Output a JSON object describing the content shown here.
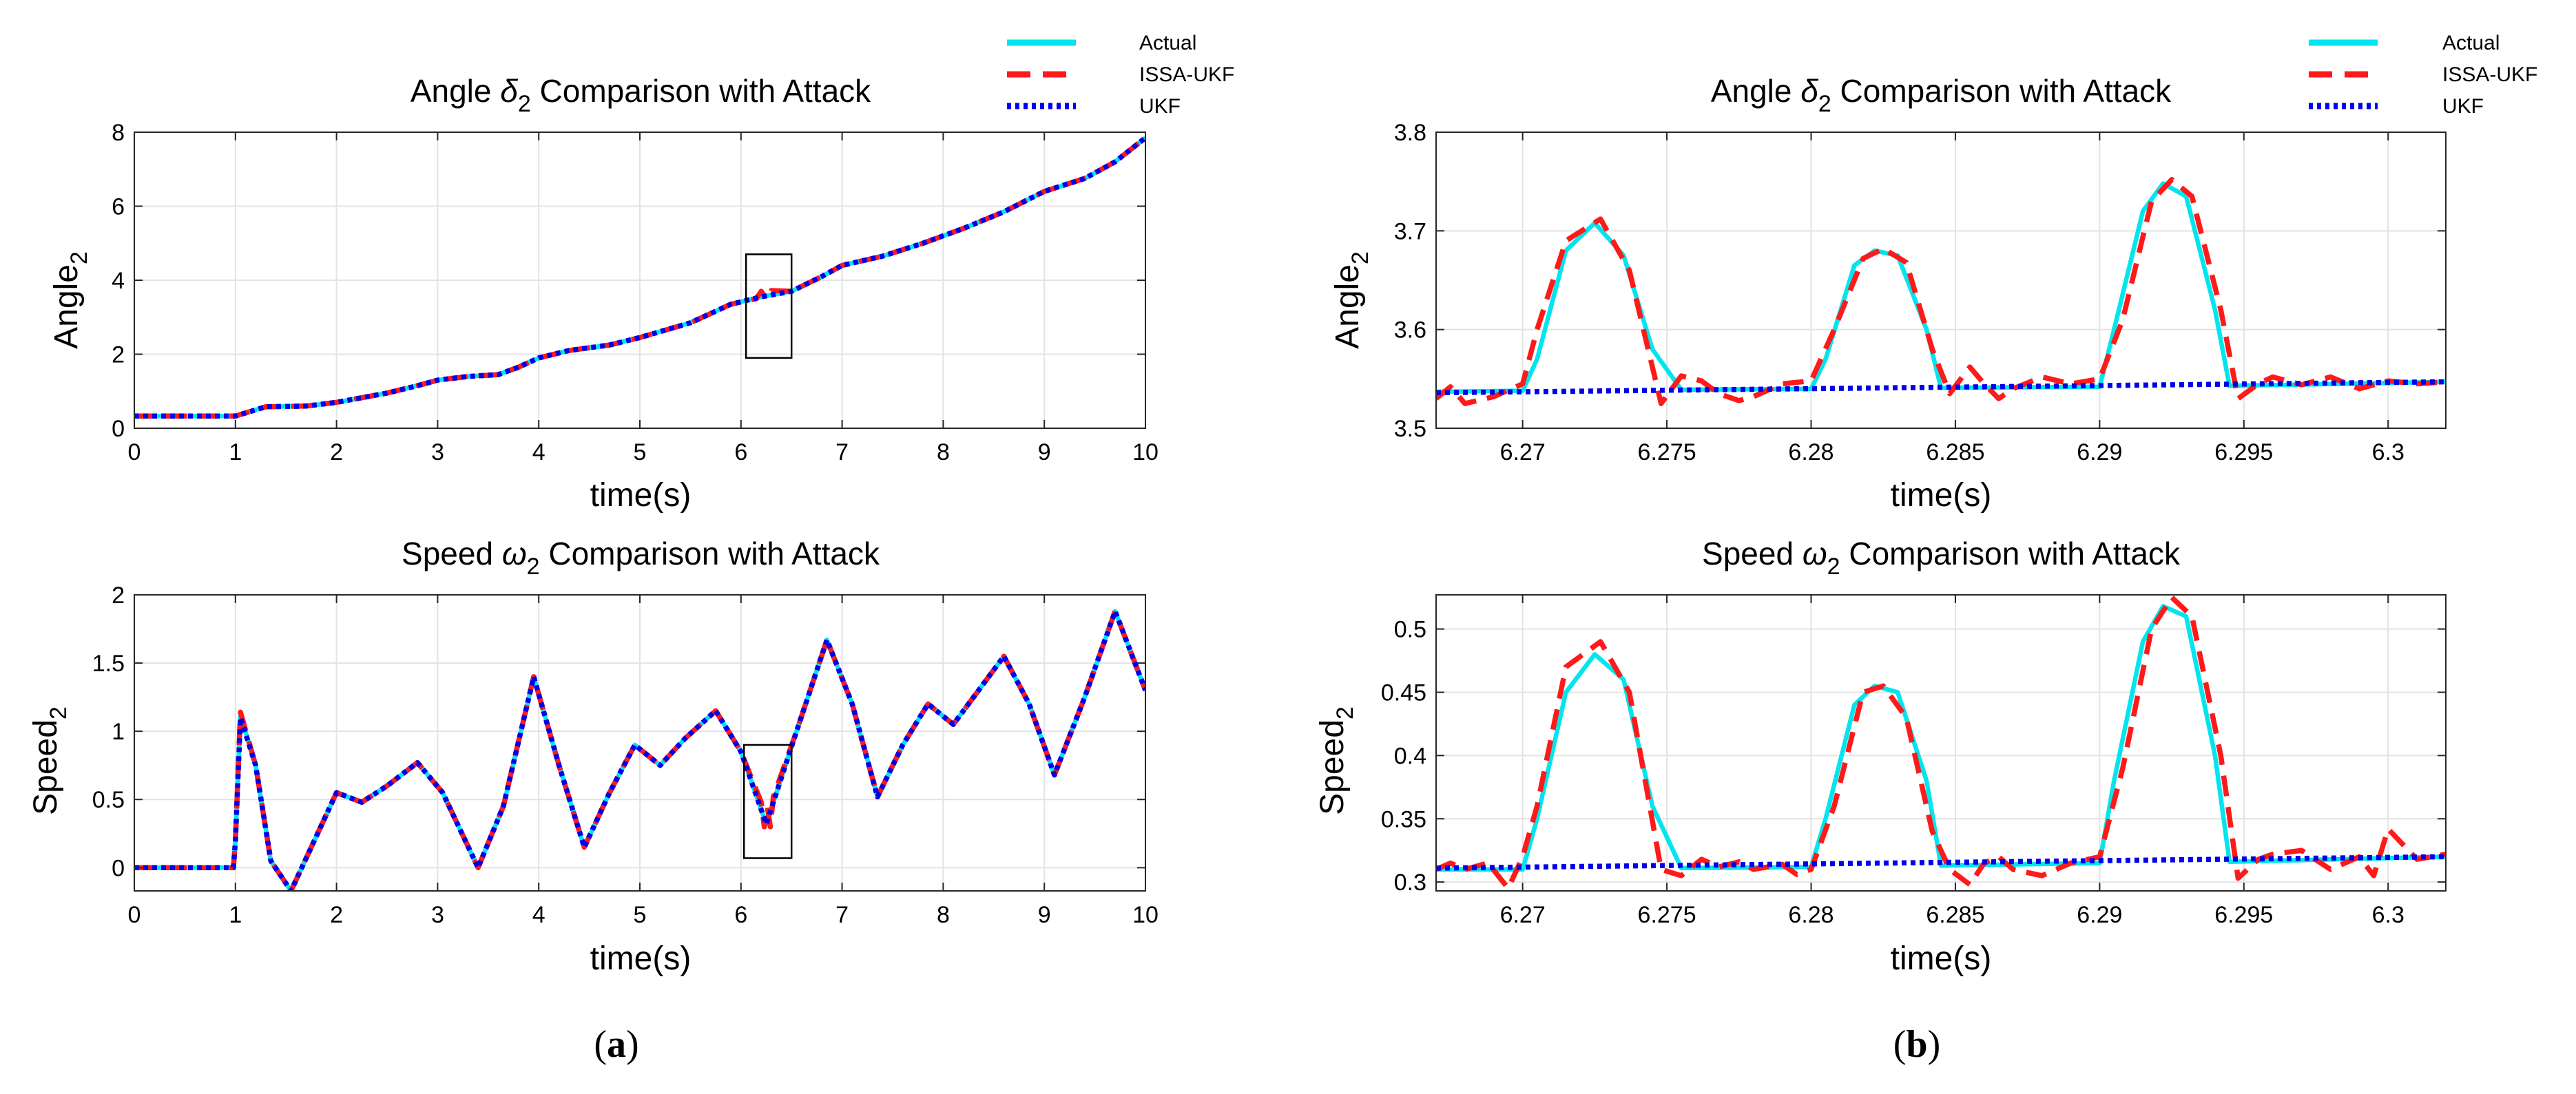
{
  "figure_labels": {
    "a": {
      "open": "(",
      "letter": "a",
      "close": ")"
    },
    "b": {
      "open": "(",
      "letter": "b",
      "close": ")"
    }
  },
  "legend": {
    "entries": [
      {
        "label": "Actual",
        "color": "#00e5ee",
        "style": "solid"
      },
      {
        "label": "ISSA-UKF",
        "color": "#ff1a1a",
        "style": "dashed"
      },
      {
        "label": "UKF",
        "color": "#0000ee",
        "style": "dotted"
      }
    ]
  },
  "chart_data": [
    {
      "id": "a-top",
      "type": "line",
      "title_prefix": "Angle ",
      "title_symbol": "δ",
      "title_subscript": "2",
      "title_suffix": " Comparison with Attack",
      "xlabel": "time(s)",
      "ylabel_main": "Angle",
      "ylabel_sub": "2",
      "xlim": [
        0,
        10
      ],
      "ylim": [
        0,
        8
      ],
      "xticks": [
        0,
        1,
        2,
        3,
        4,
        5,
        6,
        7,
        8,
        9,
        10
      ],
      "xtick_labels": [
        "0",
        "1",
        "2",
        "3",
        "4",
        "5",
        "6",
        "7",
        "8",
        "9",
        "10"
      ],
      "yticks": [
        0,
        2,
        4,
        6,
        8
      ],
      "ytick_labels": [
        "0",
        "2",
        "4",
        "6",
        "8"
      ],
      "grid": true,
      "zoom_box": {
        "x": [
          6.05,
          6.5
        ],
        "y": [
          1.9,
          4.7
        ]
      },
      "series": [
        {
          "name": "Actual",
          "x": [
            0,
            1,
            1.3,
            1.7,
            2,
            2.5,
            2.8,
            3,
            3.3,
            3.6,
            3.8,
            4,
            4.3,
            4.7,
            5,
            5.5,
            5.9,
            6.2,
            6.5,
            6.8,
            7,
            7.4,
            7.8,
            8.2,
            8.6,
            9,
            9.4,
            9.7,
            10
          ],
          "y": [
            0.33,
            0.33,
            0.58,
            0.6,
            0.7,
            0.95,
            1.15,
            1.3,
            1.4,
            1.45,
            1.65,
            1.9,
            2.1,
            2.25,
            2.45,
            2.85,
            3.35,
            3.55,
            3.7,
            4.1,
            4.4,
            4.65,
            5,
            5.4,
            5.85,
            6.4,
            6.75,
            7.2,
            7.85
          ]
        },
        {
          "name": "ISSA-UKF",
          "x": [
            0,
            1,
            1.3,
            1.7,
            2,
            2.5,
            2.8,
            3,
            3.3,
            3.6,
            3.8,
            4,
            4.3,
            4.7,
            5,
            5.5,
            5.9,
            6.15,
            6.2,
            6.25,
            6.3,
            6.5,
            6.8,
            7,
            7.4,
            7.8,
            8.2,
            8.6,
            9,
            9.4,
            9.7,
            10
          ],
          "y": [
            0.33,
            0.33,
            0.58,
            0.6,
            0.7,
            0.95,
            1.15,
            1.3,
            1.4,
            1.45,
            1.65,
            1.9,
            2.1,
            2.25,
            2.45,
            2.85,
            3.35,
            3.5,
            3.7,
            3.5,
            3.72,
            3.7,
            4.1,
            4.4,
            4.65,
            5,
            5.4,
            5.85,
            6.4,
            6.75,
            7.2,
            7.85
          ]
        },
        {
          "name": "UKF",
          "x": [
            0,
            1,
            1.3,
            1.7,
            2,
            2.5,
            2.8,
            3,
            3.3,
            3.6,
            3.8,
            4,
            4.3,
            4.7,
            5,
            5.5,
            5.9,
            6.2,
            6.5,
            6.8,
            7,
            7.4,
            7.8,
            8.2,
            8.6,
            9,
            9.4,
            9.7,
            10
          ],
          "y": [
            0.33,
            0.33,
            0.58,
            0.6,
            0.7,
            0.95,
            1.15,
            1.3,
            1.4,
            1.45,
            1.65,
            1.9,
            2.1,
            2.25,
            2.45,
            2.85,
            3.35,
            3.55,
            3.7,
            4.1,
            4.4,
            4.65,
            5,
            5.4,
            5.85,
            6.4,
            6.75,
            7.2,
            7.85
          ]
        }
      ]
    },
    {
      "id": "a-bottom",
      "type": "line",
      "title_prefix": "Speed ",
      "title_symbol": "ω",
      "title_subscript": "2",
      "title_suffix": " Comparison with Attack",
      "xlabel": "time(s)",
      "ylabel_main": "Speed",
      "ylabel_sub": "2",
      "xlim": [
        0,
        10
      ],
      "ylim": [
        -0.17,
        2
      ],
      "xticks": [
        0,
        1,
        2,
        3,
        4,
        5,
        6,
        7,
        8,
        9,
        10
      ],
      "xtick_labels": [
        "0",
        "1",
        "2",
        "3",
        "4",
        "5",
        "6",
        "7",
        "8",
        "9",
        "10"
      ],
      "yticks": [
        0,
        0.5,
        1,
        1.5,
        2
      ],
      "ytick_labels": [
        "0",
        "0.5",
        "1",
        "1.5",
        "2"
      ],
      "grid": true,
      "zoom_box": {
        "x": [
          6.03,
          6.5
        ],
        "y": [
          0.07,
          0.9
        ]
      },
      "series": [
        {
          "name": "Actual",
          "x": [
            0,
            0.98,
            1.0,
            1.05,
            1.2,
            1.35,
            1.55,
            1.75,
            2.0,
            2.25,
            2.5,
            2.8,
            3.05,
            3.4,
            3.65,
            3.95,
            4.2,
            4.45,
            4.7,
            4.95,
            5.2,
            5.45,
            5.75,
            6.0,
            6.25,
            6.55,
            6.85,
            7.1,
            7.35,
            7.6,
            7.85,
            8.1,
            8.35,
            8.6,
            8.85,
            9.1,
            9.4,
            9.7,
            10.0
          ],
          "y": [
            0,
            0,
            0.2,
            1.12,
            0.75,
            0.05,
            -0.17,
            0.15,
            0.55,
            0.48,
            0.6,
            0.77,
            0.55,
            0.0,
            0.45,
            1.4,
            0.75,
            0.15,
            0.55,
            0.9,
            0.75,
            0.95,
            1.15,
            0.85,
            0.32,
            1.0,
            1.67,
            1.2,
            0.52,
            0.9,
            1.2,
            1.05,
            1.3,
            1.55,
            1.2,
            0.68,
            1.25,
            1.88,
            1.3
          ]
        },
        {
          "name": "ISSA-UKF",
          "x": [
            0,
            0.98,
            1.0,
            1.05,
            1.2,
            1.35,
            1.55,
            1.75,
            2.0,
            2.25,
            2.5,
            2.8,
            3.05,
            3.4,
            3.65,
            3.95,
            4.2,
            4.45,
            4.7,
            4.95,
            5.2,
            5.45,
            5.75,
            6.0,
            6.2,
            6.23,
            6.26,
            6.29,
            6.32,
            6.55,
            6.85,
            7.1,
            7.35,
            7.6,
            7.85,
            8.1,
            8.35,
            8.6,
            8.85,
            9.1,
            9.4,
            9.7,
            10.0
          ],
          "y": [
            0,
            0,
            0.2,
            1.14,
            0.75,
            0.05,
            -0.17,
            0.15,
            0.55,
            0.48,
            0.6,
            0.77,
            0.55,
            0.0,
            0.45,
            1.4,
            0.75,
            0.15,
            0.55,
            0.9,
            0.75,
            0.95,
            1.15,
            0.85,
            0.48,
            0.3,
            0.45,
            0.3,
            0.52,
            1.0,
            1.67,
            1.2,
            0.52,
            0.9,
            1.2,
            1.05,
            1.3,
            1.55,
            1.2,
            0.68,
            1.25,
            1.88,
            1.3
          ]
        },
        {
          "name": "UKF",
          "x": [
            0,
            0.98,
            1.0,
            1.05,
            1.2,
            1.35,
            1.55,
            1.75,
            2.0,
            2.25,
            2.5,
            2.8,
            3.05,
            3.4,
            3.65,
            3.95,
            4.2,
            4.45,
            4.7,
            4.95,
            5.2,
            5.45,
            5.75,
            6.0,
            6.25,
            6.55,
            6.85,
            7.1,
            7.35,
            7.6,
            7.85,
            8.1,
            8.35,
            8.6,
            8.85,
            9.1,
            9.4,
            9.7,
            10.0
          ],
          "y": [
            0,
            0,
            0.2,
            1.1,
            0.75,
            0.05,
            -0.17,
            0.15,
            0.55,
            0.48,
            0.6,
            0.77,
            0.55,
            0.0,
            0.45,
            1.4,
            0.75,
            0.15,
            0.55,
            0.9,
            0.75,
            0.95,
            1.15,
            0.85,
            0.32,
            1.0,
            1.67,
            1.2,
            0.52,
            0.9,
            1.2,
            1.05,
            1.3,
            1.55,
            1.2,
            0.68,
            1.25,
            1.88,
            1.3
          ]
        }
      ]
    },
    {
      "id": "b-top",
      "type": "line",
      "title_prefix": "Angle ",
      "title_symbol": "δ",
      "title_subscript": "2",
      "title_suffix": " Comparison with Attack",
      "xlabel": "time(s)",
      "ylabel_main": "Angle",
      "ylabel_sub": "2",
      "xlim": [
        6.267,
        6.302
      ],
      "ylim": [
        3.5,
        3.8
      ],
      "xticks": [
        6.27,
        6.275,
        6.28,
        6.285,
        6.29,
        6.295,
        6.3
      ],
      "xtick_labels": [
        "6.27",
        "6.275",
        "6.28",
        "6.285",
        "6.29",
        "6.295",
        "6.3"
      ],
      "yticks": [
        3.5,
        3.6,
        3.7,
        3.8
      ],
      "ytick_labels": [
        "3.5",
        "3.6",
        "3.7",
        "3.8"
      ],
      "grid": true,
      "series": [
        {
          "name": "Actual",
          "x": [
            6.267,
            6.27,
            6.2705,
            6.2715,
            6.2725,
            6.2735,
            6.2745,
            6.2755,
            6.28,
            6.2805,
            6.2815,
            6.2822,
            6.283,
            6.284,
            6.2845,
            6.29,
            6.2905,
            6.2915,
            6.2922,
            6.293,
            6.294,
            6.2945,
            6.302
          ],
          "y": [
            3.537,
            3.538,
            3.57,
            3.68,
            3.708,
            3.675,
            3.58,
            3.539,
            3.54,
            3.57,
            3.665,
            3.68,
            3.675,
            3.6,
            3.541,
            3.542,
            3.6,
            3.72,
            3.748,
            3.735,
            3.62,
            3.543,
            3.547
          ]
        },
        {
          "name": "ISSA-UKF",
          "x": [
            6.267,
            6.2675,
            6.268,
            6.269,
            6.27,
            6.2705,
            6.2715,
            6.2727,
            6.2737,
            6.2748,
            6.2755,
            6.2762,
            6.2768,
            6.2775,
            6.278,
            6.279,
            6.28,
            6.2808,
            6.2818,
            6.2825,
            6.2833,
            6.2842,
            6.2848,
            6.2855,
            6.286,
            6.2865,
            6.287,
            6.288,
            6.289,
            6.29,
            6.2908,
            6.2918,
            6.2925,
            6.2932,
            6.2942,
            6.2948,
            6.2955,
            6.296,
            6.297,
            6.298,
            6.299,
            6.3,
            6.301,
            6.302
          ],
          "y": [
            3.53,
            3.542,
            3.525,
            3.532,
            3.545,
            3.6,
            3.69,
            3.712,
            3.66,
            3.525,
            3.553,
            3.548,
            3.535,
            3.528,
            3.532,
            3.545,
            3.548,
            3.6,
            3.672,
            3.682,
            3.668,
            3.58,
            3.535,
            3.562,
            3.545,
            3.53,
            3.54,
            3.552,
            3.545,
            3.55,
            3.61,
            3.73,
            3.752,
            3.735,
            3.62,
            3.53,
            3.545,
            3.552,
            3.544,
            3.552,
            3.54,
            3.548,
            3.545,
            3.547
          ]
        },
        {
          "name": "UKF",
          "x": [
            6.267,
            6.302
          ],
          "y": [
            3.536,
            3.547
          ]
        }
      ]
    },
    {
      "id": "b-bottom",
      "type": "line",
      "title_prefix": "Speed ",
      "title_symbol": "ω",
      "title_subscript": "2",
      "title_suffix": " Comparison with Attack",
      "xlabel": "time(s)",
      "ylabel_main": "Speed",
      "ylabel_sub": "2",
      "xlim": [
        6.267,
        6.302
      ],
      "ylim": [
        0.293,
        0.527
      ],
      "xticks": [
        6.27,
        6.275,
        6.28,
        6.285,
        6.29,
        6.295,
        6.3
      ],
      "xtick_labels": [
        "6.27",
        "6.275",
        "6.28",
        "6.285",
        "6.29",
        "6.295",
        "6.3"
      ],
      "yticks": [
        0.3,
        0.35,
        0.4,
        0.45,
        0.5
      ],
      "ytick_labels": [
        "0.3",
        "0.35",
        "0.4",
        "0.45",
        "0.5"
      ],
      "grid": true,
      "series": [
        {
          "name": "Actual",
          "x": [
            6.267,
            6.27,
            6.2705,
            6.2715,
            6.2725,
            6.2735,
            6.2745,
            6.2755,
            6.28,
            6.2805,
            6.2815,
            6.2822,
            6.283,
            6.284,
            6.2845,
            6.29,
            6.2905,
            6.2915,
            6.2922,
            6.293,
            6.294,
            6.2945,
            6.302
          ],
          "y": [
            0.31,
            0.31,
            0.35,
            0.45,
            0.48,
            0.46,
            0.36,
            0.311,
            0.312,
            0.35,
            0.44,
            0.455,
            0.45,
            0.38,
            0.313,
            0.315,
            0.38,
            0.49,
            0.518,
            0.51,
            0.4,
            0.316,
            0.32
          ]
        },
        {
          "name": "ISSA-UKF",
          "x": [
            6.267,
            6.2675,
            6.268,
            6.2688,
            6.2695,
            6.27,
            6.2705,
            6.2715,
            6.2727,
            6.2737,
            6.2748,
            6.2755,
            6.2762,
            6.2768,
            6.2775,
            6.278,
            6.279,
            6.2795,
            6.28,
            6.2808,
            6.2818,
            6.2825,
            6.2833,
            6.2842,
            6.2848,
            6.2855,
            6.286,
            6.2865,
            6.287,
            6.288,
            6.289,
            6.29,
            6.2908,
            6.2918,
            6.2925,
            6.2932,
            6.2942,
            6.2948,
            6.2955,
            6.296,
            6.297,
            6.298,
            6.299,
            6.2995,
            6.3,
            6.301,
            6.302
          ],
          "y": [
            0.31,
            0.315,
            0.31,
            0.315,
            0.295,
            0.32,
            0.36,
            0.47,
            0.49,
            0.45,
            0.31,
            0.305,
            0.318,
            0.312,
            0.316,
            0.31,
            0.314,
            0.306,
            0.31,
            0.36,
            0.45,
            0.455,
            0.43,
            0.34,
            0.31,
            0.298,
            0.315,
            0.32,
            0.31,
            0.305,
            0.315,
            0.32,
            0.39,
            0.5,
            0.525,
            0.51,
            0.4,
            0.303,
            0.318,
            0.322,
            0.325,
            0.31,
            0.32,
            0.305,
            0.342,
            0.318,
            0.322
          ]
        },
        {
          "name": "UKF",
          "x": [
            6.267,
            6.302
          ],
          "y": [
            0.311,
            0.32
          ]
        }
      ]
    }
  ]
}
